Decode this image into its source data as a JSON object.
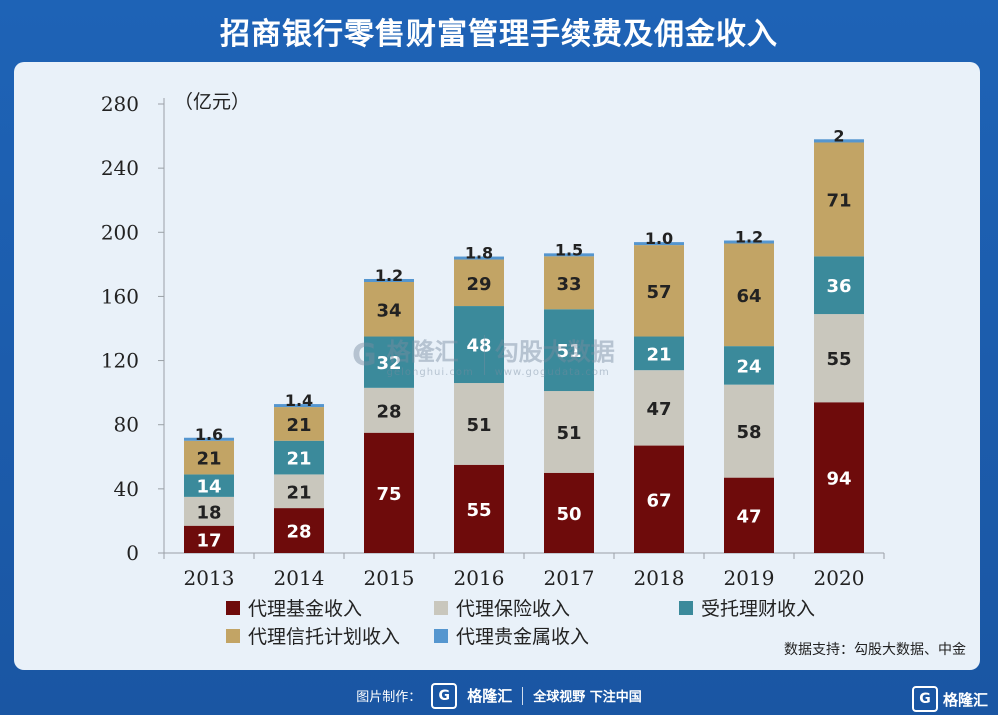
{
  "header": {
    "title": "招商银行零售财富管理手续费及佣金收入"
  },
  "chart_data": {
    "type": "bar",
    "stacked": true,
    "title": "招商银行零售财富管理手续费及佣金收入",
    "ylabel": "（亿元）",
    "xlabel": "",
    "ylim": [
      0,
      280
    ],
    "yticks": [
      "0",
      "40",
      "80",
      "120",
      "160",
      "200",
      "240",
      "280"
    ],
    "ytick_values": [
      0,
      40,
      80,
      120,
      160,
      200,
      240,
      280
    ],
    "categories": [
      "2013",
      "2014",
      "2015",
      "2016",
      "2017",
      "2018",
      "2019",
      "2020"
    ],
    "series": [
      {
        "name": "代理基金收入",
        "color": "#6e0b0b",
        "label_color": "#ffffff",
        "values": [
          17,
          28,
          75,
          55,
          50,
          67,
          47,
          94
        ],
        "labels": [
          "17",
          "28",
          "75",
          "55",
          "50",
          "67",
          "47",
          "94"
        ]
      },
      {
        "name": "代理保险收入",
        "color": "#c9c7bd",
        "label_color": "#222222",
        "values": [
          18,
          21,
          28,
          51,
          51,
          47,
          58,
          55
        ],
        "labels": [
          "18",
          "21",
          "28",
          "51",
          "51",
          "47",
          "58",
          "55"
        ]
      },
      {
        "name": "受托理财收入",
        "color": "#3b8a9b",
        "label_color": "#ffffff",
        "values": [
          14,
          21,
          32,
          48,
          51,
          21,
          24,
          36
        ],
        "labels": [
          "14",
          "21",
          "32",
          "48",
          "51",
          "21",
          "24",
          "36"
        ]
      },
      {
        "name": "代理信托计划收入",
        "color": "#c2a465",
        "label_color": "#222222",
        "values": [
          21,
          21,
          34,
          29,
          33,
          57,
          64,
          71
        ],
        "labels": [
          "21",
          "21",
          "34",
          "29",
          "33",
          "57",
          "64",
          "71"
        ]
      },
      {
        "name": "代理贵金属收入",
        "color": "#5596cf",
        "label_color": "#222222",
        "values": [
          1.6,
          1.4,
          1.2,
          1.8,
          1.5,
          1.0,
          1.2,
          2
        ],
        "labels": [
          "1.6",
          "1.4",
          "1.2",
          "1.8",
          "1.5",
          "1.0",
          "1.2",
          "2"
        ]
      }
    ],
    "source": "数据支持：勾股大数据、中金"
  },
  "watermark": {
    "brand": "格隆汇",
    "brand_url": "gelonghui.com",
    "brand2": "勾股大数据",
    "brand2_url": "www.gogudata.com"
  },
  "footer": {
    "prefix": "图片制作：",
    "brand": "格隆汇",
    "slogan": "全球视野 下注中国",
    "corner_brand": "格隆汇"
  }
}
